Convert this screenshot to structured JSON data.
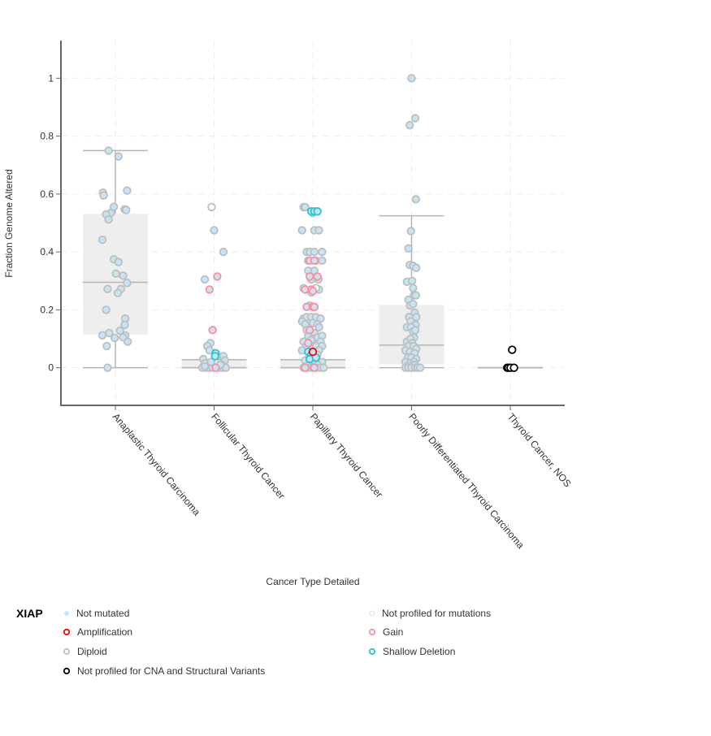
{
  "chart_data": {
    "type": "box-scatter",
    "title": "",
    "xlabel": "Cancer Type Detailed",
    "ylabel": "Fraction Genome Altered",
    "ylim": [
      -0.13,
      1.13
    ],
    "yticks": [
      0,
      0.2,
      0.4,
      0.6,
      0.8,
      1
    ],
    "ytick_labels": [
      "0",
      "0.2",
      "0.4",
      "0.6",
      "0.8",
      "1"
    ],
    "grid": true,
    "legend_position": "bottom",
    "categories": [
      "Anaplastic Thyroid Carcinoma",
      "Follicular Thyroid Cancer",
      "Papillary Thyroid Cancer",
      "Poorly Differentiated Thyroid Carcinoma",
      "Thyroid Cancer, NOS"
    ],
    "boxes": [
      {
        "category": "Anaplastic Thyroid Carcinoma",
        "whisker_low": 0,
        "q1": 0.115,
        "median": 0.295,
        "q3": 0.532,
        "whisker_high": 0.75
      },
      {
        "category": "Follicular Thyroid Cancer",
        "whisker_low": 0,
        "q1": 0,
        "median": 0,
        "q3": 0.028,
        "whisker_high": 0.028
      },
      {
        "category": "Papillary Thyroid Cancer",
        "whisker_low": 0,
        "q1": 0,
        "median": 0,
        "q3": 0.028,
        "whisker_high": 0.028
      },
      {
        "category": "Poorly Differentiated Thyroid Carcinoma",
        "whisker_low": 0,
        "q1": 0.012,
        "median": 0.078,
        "q3": 0.217,
        "whisker_high": 0.525
      },
      {
        "category": "Thyroid Cancer, NOS",
        "whisker_low": 0,
        "q1": 0,
        "median": 0,
        "q3": 0,
        "whisker_high": 0
      }
    ],
    "series": [
      {
        "name": "Not mutated / Diploid",
        "key": "nm",
        "points": [
          [
            0,
            -0.22,
            0.75
          ],
          [
            0,
            0.1,
            0.73
          ],
          [
            0,
            -0.4,
            0.605
          ],
          [
            0,
            -0.38,
            0.595
          ],
          [
            0,
            0.38,
            0.612
          ],
          [
            0,
            -0.05,
            0.556
          ],
          [
            0,
            -0.15,
            0.535
          ],
          [
            0,
            -0.3,
            0.53
          ],
          [
            0,
            -0.22,
            0.512
          ],
          [
            0,
            0.3,
            0.547
          ],
          [
            0,
            0.35,
            0.545
          ],
          [
            0,
            -0.42,
            0.442
          ],
          [
            0,
            -0.05,
            0.375
          ],
          [
            0,
            0.1,
            0.365
          ],
          [
            0,
            0.02,
            0.325
          ],
          [
            0,
            0.25,
            0.318
          ],
          [
            0,
            0.38,
            0.293
          ],
          [
            0,
            -0.25,
            0.272
          ],
          [
            0,
            0.18,
            0.272
          ],
          [
            0,
            0.08,
            0.258
          ],
          [
            0,
            -0.3,
            0.2
          ],
          [
            0,
            0.32,
            0.17
          ],
          [
            0,
            0.3,
            0.148
          ],
          [
            0,
            0.15,
            0.128
          ],
          [
            0,
            -0.2,
            0.12
          ],
          [
            0,
            -0.42,
            0.112
          ],
          [
            0,
            0.32,
            0.112
          ],
          [
            0,
            -0.02,
            0.103
          ],
          [
            0,
            0.25,
            0.105
          ],
          [
            0,
            0.4,
            0.09
          ],
          [
            0,
            -0.28,
            0.075
          ],
          [
            0,
            -0.25,
            0.0
          ],
          [
            1,
            0.0,
            0.475
          ],
          [
            1,
            0.3,
            0.4
          ],
          [
            1,
            -0.3,
            0.305
          ],
          [
            1,
            -0.12,
            0.085
          ],
          [
            1,
            -0.22,
            0.075
          ],
          [
            1,
            -0.15,
            0.06
          ],
          [
            1,
            -0.35,
            0.03
          ],
          [
            1,
            0.1,
            0.04
          ],
          [
            1,
            0.3,
            0.04
          ],
          [
            1,
            0.35,
            0.025
          ],
          [
            1,
            -0.3,
            0.015
          ],
          [
            1,
            -0.1,
            0.015
          ],
          [
            1,
            0.25,
            0.01
          ],
          [
            1,
            -0.38,
            0.0
          ],
          [
            1,
            -0.25,
            0.0
          ],
          [
            1,
            -0.15,
            0.0
          ],
          [
            1,
            -0.05,
            0.0
          ],
          [
            1,
            0.05,
            0.0
          ],
          [
            1,
            0.15,
            0.0
          ],
          [
            1,
            0.28,
            0.0
          ],
          [
            1,
            0.38,
            0.0
          ],
          [
            1,
            -0.3,
            0.005
          ],
          [
            1,
            -0.1,
            0.02
          ],
          [
            1,
            0.2,
            0.01
          ],
          [
            2,
            -0.3,
            0.555
          ],
          [
            2,
            -0.25,
            0.555
          ],
          [
            2,
            0.0,
            0.535
          ],
          [
            2,
            -0.35,
            0.475
          ],
          [
            2,
            0.05,
            0.475
          ],
          [
            2,
            0.2,
            0.475
          ],
          [
            2,
            -0.2,
            0.4
          ],
          [
            2,
            -0.1,
            0.4
          ],
          [
            2,
            0.05,
            0.4
          ],
          [
            2,
            0.3,
            0.4
          ],
          [
            2,
            -0.15,
            0.37
          ],
          [
            2,
            0.1,
            0.37
          ],
          [
            2,
            0.3,
            0.37
          ],
          [
            2,
            -0.15,
            0.335
          ],
          [
            2,
            0.05,
            0.335
          ],
          [
            2,
            -0.05,
            0.305
          ],
          [
            2,
            0.18,
            0.305
          ],
          [
            2,
            -0.3,
            0.275
          ],
          [
            2,
            -0.05,
            0.26
          ],
          [
            2,
            0.2,
            0.27
          ],
          [
            2,
            -0.1,
            0.215
          ],
          [
            2,
            0.05,
            0.21
          ],
          [
            2,
            -0.3,
            0.17
          ],
          [
            2,
            -0.2,
            0.175
          ],
          [
            2,
            -0.05,
            0.175
          ],
          [
            2,
            0.1,
            0.175
          ],
          [
            2,
            0.25,
            0.17
          ],
          [
            2,
            -0.35,
            0.16
          ],
          [
            2,
            -0.25,
            0.15
          ],
          [
            2,
            0.0,
            0.155
          ],
          [
            2,
            0.15,
            0.15
          ],
          [
            2,
            -0.2,
            0.13
          ],
          [
            2,
            0.05,
            0.12
          ],
          [
            2,
            0.2,
            0.14
          ],
          [
            2,
            -0.15,
            0.11
          ],
          [
            2,
            0.0,
            0.1
          ],
          [
            2,
            0.15,
            0.105
          ],
          [
            2,
            0.3,
            0.11
          ],
          [
            2,
            -0.3,
            0.09
          ],
          [
            2,
            -0.05,
            0.095
          ],
          [
            2,
            0.25,
            0.09
          ],
          [
            2,
            -0.2,
            0.075
          ],
          [
            2,
            0.1,
            0.075
          ],
          [
            2,
            0.3,
            0.075
          ],
          [
            2,
            -0.35,
            0.06
          ],
          [
            2,
            0.2,
            0.06
          ],
          [
            2,
            -0.1,
            0.045
          ],
          [
            2,
            0.15,
            0.045
          ],
          [
            2,
            -0.25,
            0.025
          ],
          [
            2,
            0.05,
            0.025
          ],
          [
            2,
            0.3,
            0.02
          ],
          [
            2,
            -0.15,
            0.01
          ],
          [
            2,
            0.15,
            0.01
          ],
          [
            2,
            -0.3,
            0.0
          ],
          [
            2,
            -0.2,
            0.0
          ],
          [
            2,
            -0.1,
            0.0
          ],
          [
            2,
            0.0,
            0.0
          ],
          [
            2,
            0.1,
            0.0
          ],
          [
            2,
            0.25,
            0.0
          ],
          [
            2,
            0.35,
            0.0
          ],
          [
            3,
            0.0,
            1.0
          ],
          [
            3,
            -0.06,
            0.838
          ],
          [
            3,
            0.12,
            0.862
          ],
          [
            3,
            0.14,
            0.582
          ],
          [
            3,
            -0.02,
            0.472
          ],
          [
            3,
            -0.1,
            0.412
          ],
          [
            3,
            -0.06,
            0.355
          ],
          [
            3,
            0.05,
            0.352
          ],
          [
            3,
            0.15,
            0.345
          ],
          [
            3,
            -0.15,
            0.297
          ],
          [
            3,
            0.02,
            0.3
          ],
          [
            3,
            0.05,
            0.275
          ],
          [
            3,
            0.08,
            0.25
          ],
          [
            3,
            0.14,
            0.25
          ],
          [
            3,
            -0.1,
            0.235
          ],
          [
            3,
            -0.05,
            0.215
          ],
          [
            3,
            0.05,
            0.22
          ],
          [
            3,
            0.1,
            0.19
          ],
          [
            3,
            -0.08,
            0.175
          ],
          [
            3,
            0.15,
            0.175
          ],
          [
            3,
            -0.03,
            0.16
          ],
          [
            3,
            0.13,
            0.148
          ],
          [
            3,
            -0.15,
            0.14
          ],
          [
            3,
            -0.02,
            0.14
          ],
          [
            3,
            0.05,
            0.125
          ],
          [
            3,
            0.12,
            0.13
          ],
          [
            3,
            0.08,
            0.105
          ],
          [
            3,
            -0.15,
            0.09
          ],
          [
            3,
            -0.03,
            0.1
          ],
          [
            3,
            0.02,
            0.085
          ],
          [
            3,
            -0.1,
            0.075
          ],
          [
            3,
            0.07,
            0.075
          ],
          [
            3,
            0.15,
            0.065
          ],
          [
            3,
            -0.2,
            0.06
          ],
          [
            3,
            -0.05,
            0.055
          ],
          [
            3,
            0.1,
            0.05
          ],
          [
            3,
            -0.12,
            0.035
          ],
          [
            3,
            0.0,
            0.035
          ],
          [
            3,
            0.15,
            0.03
          ],
          [
            3,
            -0.2,
            0.02
          ],
          [
            3,
            -0.05,
            0.015
          ],
          [
            3,
            0.08,
            0.02
          ],
          [
            3,
            -0.15,
            0.005
          ],
          [
            3,
            0.1,
            0.01
          ],
          [
            3,
            -0.2,
            0.0
          ],
          [
            3,
            -0.1,
            0.0
          ],
          [
            3,
            0.0,
            0.0
          ],
          [
            3,
            0.12,
            0.0
          ],
          [
            3,
            0.2,
            0.0
          ],
          [
            3,
            0.28,
            0.0
          ],
          [
            4,
            -0.08,
            0.0
          ]
        ]
      },
      {
        "name": "Not profiled for mutations / Diploid",
        "key": "npm",
        "points": [
          [
            1,
            -0.08,
            0.555
          ],
          [
            2,
            0.1,
            0.275
          ]
        ]
      },
      {
        "name": "Gain",
        "key": "gain",
        "points": [
          [
            1,
            -0.15,
            0.27
          ],
          [
            1,
            0.1,
            0.315
          ],
          [
            1,
            -0.05,
            0.13
          ],
          [
            1,
            0.05,
            0.0
          ],
          [
            2,
            -0.1,
            0.37
          ],
          [
            2,
            0.05,
            0.37
          ],
          [
            2,
            -0.1,
            0.315
          ],
          [
            2,
            0.15,
            0.315
          ],
          [
            2,
            -0.25,
            0.27
          ],
          [
            2,
            -0.05,
            0.27
          ],
          [
            2,
            0.0,
            0.265
          ],
          [
            2,
            -0.2,
            0.21
          ],
          [
            2,
            0.0,
            0.21
          ],
          [
            2,
            0.05,
            0.21
          ],
          [
            2,
            -0.1,
            0.13
          ],
          [
            2,
            -0.15,
            0.085
          ],
          [
            2,
            -0.25,
            0.0
          ],
          [
            2,
            0.05,
            0.0
          ]
        ]
      },
      {
        "name": "Shallow Deletion",
        "key": "shallow",
        "points": [
          [
            1,
            0.05,
            0.05
          ],
          [
            1,
            0.03,
            0.04
          ],
          [
            2,
            -0.05,
            0.54
          ],
          [
            2,
            0.05,
            0.54
          ],
          [
            2,
            0.15,
            0.54
          ],
          [
            2,
            -0.15,
            0.055
          ],
          [
            2,
            -0.05,
            0.045
          ],
          [
            2,
            -0.1,
            0.03
          ],
          [
            2,
            0.1,
            0.035
          ]
        ]
      },
      {
        "name": "Amplification",
        "key": "amp",
        "points": [
          [
            2,
            0.0,
            0.055
          ]
        ]
      },
      {
        "name": "Not profiled for CNA and Structural Variants",
        "key": "npcna",
        "points": [
          [
            4,
            -0.1,
            0.0
          ],
          [
            4,
            -0.06,
            0.0
          ],
          [
            4,
            0.01,
            0.0
          ],
          [
            4,
            0.12,
            0.0
          ],
          [
            4,
            0.06,
            0.062
          ]
        ]
      }
    ]
  },
  "legend": {
    "title": "XIAP",
    "items": [
      {
        "label": "Not mutated",
        "key": "nm_dot"
      },
      {
        "label": "Not profiled for mutations",
        "key": "npm_dot"
      },
      {
        "label": "Amplification",
        "key": "amp"
      },
      {
        "label": "Gain",
        "key": "gain"
      },
      {
        "label": "Diploid",
        "key": "diploid"
      },
      {
        "label": "Shallow Deletion",
        "key": "shallow"
      },
      {
        "label": "Not profiled for CNA and Structural Variants",
        "key": "npcna"
      }
    ]
  },
  "colors": {
    "not_mutated_fill": "#c5e5f5",
    "diploid_stroke": "#bebebe",
    "amplification": "#ff0000",
    "gain": "#ff8c9f",
    "shallow_deletion": "#2ac3d0",
    "not_profiled_cna": "#000000",
    "not_profiled_mut_fill": "#ffffff",
    "box_fill": "#eeeeee",
    "box_line": "#b5b5b5"
  }
}
